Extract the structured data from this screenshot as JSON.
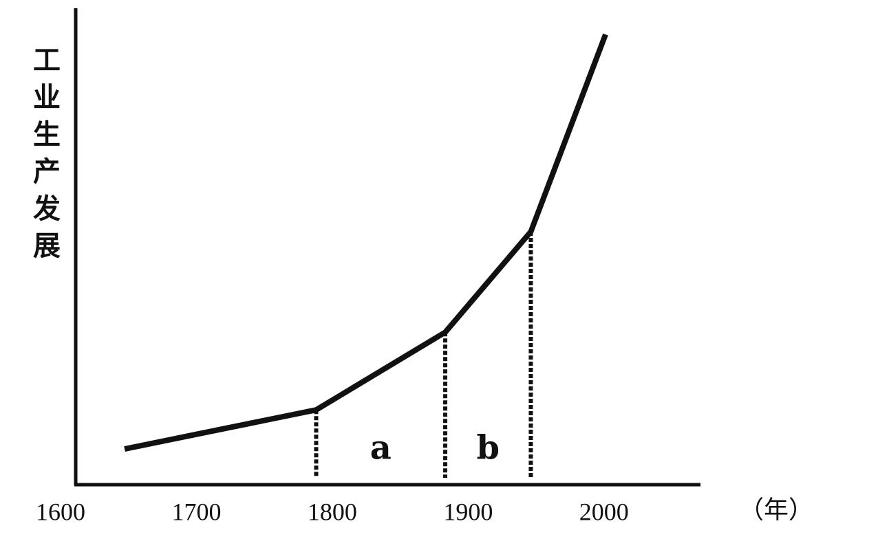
{
  "chart_data": {
    "type": "line",
    "ylabel": "工业生产发展",
    "xlabel": "（年）",
    "x": [
      1636,
      1777,
      1872,
      1935,
      1990
    ],
    "values": [
      7.5,
      15.7,
      32,
      53.1,
      94.5
    ],
    "color": "#111111",
    "xlim": [
      1600,
      2070
    ],
    "ylim": [
      0,
      100
    ],
    "xticks": [
      1600,
      1700,
      1800,
      1900,
      2000
    ],
    "annotations": [
      "a",
      "b"
    ]
  }
}
